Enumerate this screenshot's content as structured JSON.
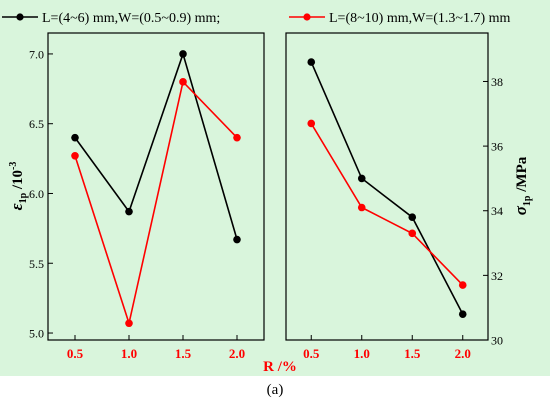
{
  "figure": {
    "caption": "(a)",
    "background_color": "#d9f5dc",
    "xlabel": "R /%",
    "ylabel_left_symbol": "ε",
    "ylabel_left_sub": "1p",
    "ylabel_left_unit": " /10",
    "ylabel_left_exp": "-3",
    "ylabel_right_symbol": "σ",
    "ylabel_right_sub": "1p",
    "ylabel_right_unit": " /MPa"
  },
  "legend": {
    "items": [
      {
        "label": "L=(4~6) mm,W=(0.5~0.9) mm;",
        "color": "#000000"
      },
      {
        "label": "L=(8~10) mm,W=(1.3~1.7) mm",
        "color": "#ff0000"
      }
    ]
  },
  "chart_data": [
    {
      "type": "line",
      "panel": "left",
      "x": [
        0.5,
        1.0,
        1.5,
        2.0
      ],
      "x_tick_labels": [
        "0.5",
        "1.0",
        "1.5",
        "2.0"
      ],
      "xlim": [
        0.25,
        2.25
      ],
      "ylim": [
        4.95,
        7.15
      ],
      "y_ticks": [
        5.0,
        5.5,
        6.0,
        6.5,
        7.0
      ],
      "y_tick_labels": [
        "5.0",
        "5.5",
        "6.0",
        "6.5",
        "7.0"
      ],
      "ylabel": "ε1p /10-3",
      "grid": false,
      "series": [
        {
          "name": "L=(4~6) mm,W=(0.5~0.9) mm;",
          "color": "#000000",
          "values": [
            6.4,
            5.87,
            7.0,
            5.67
          ]
        },
        {
          "name": "L=(8~10) mm,W=(1.3~1.7) mm",
          "color": "#ff0000",
          "values": [
            6.27,
            5.07,
            6.8,
            6.4
          ]
        }
      ]
    },
    {
      "type": "line",
      "panel": "right",
      "x": [
        0.5,
        1.0,
        1.5,
        2.0
      ],
      "x_tick_labels": [
        "0.5",
        "1.0",
        "1.5",
        "2.0"
      ],
      "xlim": [
        0.25,
        2.25
      ],
      "ylim": [
        30,
        39.5
      ],
      "y_ticks": [
        30,
        32,
        34,
        36,
        38
      ],
      "y_tick_labels": [
        "30",
        "32",
        "34",
        "36",
        "38"
      ],
      "ylabel": "σ1p /MPa",
      "y_axis_side": "right",
      "grid": false,
      "series": [
        {
          "name": "L=(4~6) mm,W=(0.5~0.9) mm;",
          "color": "#000000",
          "values": [
            38.6,
            35.0,
            33.8,
            30.8
          ]
        },
        {
          "name": "L=(8~10) mm,W=(1.3~1.7) mm",
          "color": "#ff0000",
          "values": [
            36.7,
            34.1,
            33.3,
            31.7
          ]
        }
      ]
    }
  ]
}
